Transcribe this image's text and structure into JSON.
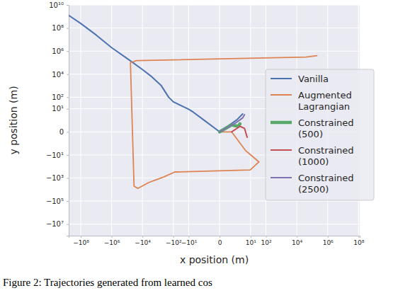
{
  "chart_data": {
    "type": "line",
    "x_label": "x position (m)",
    "y_label": "y position (m)",
    "caption": "Figure 2: Trajectories generated from learned cos",
    "log": true,
    "grid": true,
    "legend": "right",
    "xlim": [
      -600000000,
      120000000
    ],
    "ylim": [
      -100000000,
      10000000000
    ],
    "xticks": [
      {
        "value": -100000000,
        "label": "−10⁸"
      },
      {
        "value": -1000000,
        "label": "−10⁶"
      },
      {
        "value": -10000,
        "label": "−10⁴"
      },
      {
        "value": -100,
        "label": "−10²"
      },
      {
        "value": -10,
        "label": "−10¹"
      },
      0,
      {
        "value": 10,
        "label": "10¹"
      },
      {
        "value": 100,
        "label": "10²"
      },
      {
        "value": 10000,
        "label": "10⁴"
      },
      {
        "value": 1000000,
        "label": "10⁶"
      },
      {
        "value": 100000000,
        "label": "10⁸"
      }
    ],
    "yticks": [
      {
        "value": -10000000,
        "label": "−10⁷"
      },
      {
        "value": -100000,
        "label": "−10⁵"
      },
      {
        "value": -1000,
        "label": "−10³"
      },
      {
        "value": -10,
        "label": "−10¹"
      },
      0,
      {
        "value": 10,
        "label": "10¹"
      },
      {
        "value": 100,
        "label": "10²"
      },
      {
        "value": 10000,
        "label": "10⁴"
      },
      {
        "value": 1000000,
        "label": "10⁶"
      },
      {
        "value": 100000000,
        "label": "10⁸"
      },
      {
        "value": 10000000000,
        "label": "10¹⁰"
      }
    ],
    "series": [
      {
        "name": "Vanilla",
        "color": "#4c72b0",
        "x": [
          -1000000000,
          -100000000,
          -10000000,
          -1000000,
          -85000,
          -10000,
          -2500,
          -600,
          -200,
          -100,
          -10,
          -5,
          -1.5,
          0,
          1.2,
          3
        ],
        "values": [
          2000000000,
          250000000,
          25000000,
          2000000,
          200000,
          25000,
          6000,
          1000,
          100,
          40,
          9,
          5,
          1.5,
          0,
          1,
          3.5
        ]
      },
      {
        "name": "Augmented\nLagrangian",
        "color": "#dd8452",
        "x": [
          200000,
          40000,
          -24000,
          -60000,
          -35000,
          -20000,
          -4000,
          -400,
          -80,
          9.5,
          20,
          35,
          9.5,
          4.6,
          0.5,
          0
        ],
        "values": [
          400000,
          300000,
          150000,
          100000,
          -5000,
          -8000,
          -2500,
          -800,
          -300,
          -200,
          -80,
          -40,
          -9,
          -4,
          0,
          0
        ]
      },
      {
        "name": "Constrained\n(500)",
        "color": "#55a868",
        "x": [
          0,
          0.5,
          1.5,
          2
        ],
        "values": [
          0,
          0.3,
          0.2,
          0.4
        ]
      },
      {
        "name": "Constrained\n(1000)",
        "color": "#c44e52",
        "x": [
          0.5,
          2,
          4,
          6
        ],
        "values": [
          0,
          0.2,
          0.1,
          -0.2
        ]
      },
      {
        "name": "Constrained\n(2500)",
        "color": "#8172b3",
        "x": [
          0,
          1,
          3,
          4
        ],
        "values": [
          0,
          0.5,
          1.5,
          3
        ]
      }
    ]
  }
}
